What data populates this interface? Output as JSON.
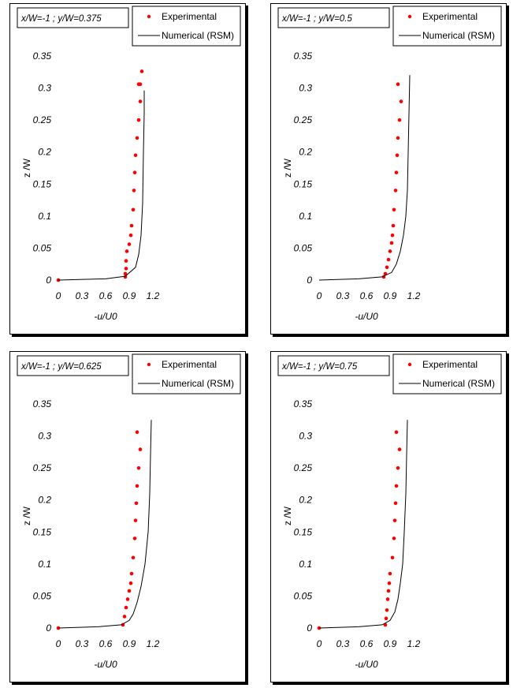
{
  "chart_data": [
    {
      "type": "scatter",
      "annotation": "x/W=-1 ; y/W=0.375",
      "xlabel": "-u/U0",
      "ylabel": "z /W",
      "xlim": [
        0,
        1.2
      ],
      "ylim": [
        0,
        0.35
      ],
      "xticks": [
        "0",
        "0.3",
        "0.6",
        "0.9",
        "1.2"
      ],
      "yticks": [
        "0",
        "0.05",
        "0.1",
        "0.15",
        "0.2",
        "0.25",
        "0.3",
        "0.35"
      ],
      "legend": [
        "Experimental",
        "Numerical (RSM)"
      ],
      "series": [
        {
          "name": "Experimental",
          "style": "markers",
          "color": "#ff0000",
          "x": [
            0.0,
            0.85,
            0.85,
            0.86,
            0.86,
            0.87,
            0.9,
            0.92,
            0.93,
            0.95,
            0.96,
            0.97,
            0.98,
            1.0,
            1.02,
            1.04,
            1.04,
            1.06,
            1.02
          ],
          "y": [
            0.0,
            0.005,
            0.01,
            0.018,
            0.03,
            0.045,
            0.056,
            0.07,
            0.085,
            0.11,
            0.14,
            0.168,
            0.195,
            0.222,
            0.25,
            0.279,
            0.306,
            0.326,
            0.306
          ]
        },
        {
          "name": "Numerical (RSM)",
          "style": "line",
          "color": "#000000",
          "x": [
            0.0,
            0.6,
            0.85,
            0.98,
            1.02,
            1.05,
            1.07,
            1.08,
            1.09,
            1.09
          ],
          "y": [
            0.0,
            0.002,
            0.006,
            0.02,
            0.04,
            0.07,
            0.12,
            0.2,
            0.26,
            0.296
          ]
        }
      ]
    },
    {
      "type": "scatter",
      "annotation": "x/W=-1 ; y/W=0.5",
      "xlabel": "-u/U0",
      "ylabel": "z /W",
      "xlim": [
        0,
        1.2
      ],
      "ylim": [
        0,
        0.35
      ],
      "xticks": [
        "0",
        "0.3",
        "0.6",
        "0.9",
        "1.2"
      ],
      "yticks": [
        "0",
        "0.05",
        "0.1",
        "0.15",
        "0.2",
        "0.25",
        "0.3",
        "0.35"
      ],
      "legend": [
        "Experimental",
        "Numerical (RSM)"
      ],
      "series": [
        {
          "name": "Experimental",
          "style": "markers",
          "color": "#ff0000",
          "x": [
            0.82,
            0.84,
            0.86,
            0.88,
            0.9,
            0.92,
            0.93,
            0.94,
            0.95,
            0.97,
            0.98,
            0.99,
            1.0,
            1.02,
            1.04,
            1.0
          ],
          "y": [
            0.005,
            0.01,
            0.02,
            0.032,
            0.045,
            0.058,
            0.07,
            0.085,
            0.11,
            0.14,
            0.168,
            0.195,
            0.222,
            0.25,
            0.279,
            0.306
          ]
        },
        {
          "name": "Numerical (RSM)",
          "style": "line",
          "color": "#000000",
          "x": [
            0.0,
            0.5,
            0.8,
            0.92,
            0.98,
            1.03,
            1.07,
            1.1,
            1.12,
            1.13,
            1.14,
            1.15
          ],
          "y": [
            0.0,
            0.002,
            0.005,
            0.012,
            0.025,
            0.045,
            0.07,
            0.1,
            0.14,
            0.2,
            0.26,
            0.32
          ]
        }
      ]
    },
    {
      "type": "scatter",
      "annotation": "x/W=-1 ; y/W=0.625",
      "xlabel": "-u/U0",
      "ylabel": "z /W",
      "xlim": [
        0,
        1.2
      ],
      "ylim": [
        0,
        0.35
      ],
      "xticks": [
        "0",
        "0.3",
        "0.6",
        "0.9",
        "1.2"
      ],
      "yticks": [
        "0",
        "0.05",
        "0.1",
        "0.15",
        "0.2",
        "0.25",
        "0.3",
        "0.35"
      ],
      "legend": [
        "Experimental",
        "Numerical (RSM)"
      ],
      "series": [
        {
          "name": "Experimental",
          "style": "markers",
          "color": "#ff0000",
          "x": [
            0.0,
            0.82,
            0.84,
            0.86,
            0.88,
            0.9,
            0.92,
            0.93,
            0.95,
            0.97,
            0.98,
            0.99,
            1.0,
            1.02,
            1.04,
            1.0
          ],
          "y": [
            0.0,
            0.005,
            0.018,
            0.032,
            0.045,
            0.058,
            0.07,
            0.085,
            0.11,
            0.14,
            0.168,
            0.195,
            0.222,
            0.25,
            0.279,
            0.306
          ]
        },
        {
          "name": "Numerical (RSM)",
          "style": "line",
          "color": "#000000",
          "x": [
            0.0,
            0.5,
            0.8,
            0.9,
            0.95,
            1.0,
            1.05,
            1.1,
            1.14,
            1.16,
            1.17,
            1.18
          ],
          "y": [
            0.0,
            0.002,
            0.005,
            0.012,
            0.022,
            0.04,
            0.065,
            0.1,
            0.15,
            0.21,
            0.27,
            0.325
          ]
        }
      ]
    },
    {
      "type": "scatter",
      "annotation": "x/W=-1 ; y/W=0.75",
      "xlabel": "-u/U0",
      "ylabel": "z /W",
      "xlim": [
        0,
        1.2
      ],
      "ylim": [
        0,
        0.35
      ],
      "xticks": [
        "0",
        "0.3",
        "0.6",
        "0.9",
        "1.2"
      ],
      "yticks": [
        "0",
        "0.05",
        "0.1",
        "0.15",
        "0.2",
        "0.25",
        "0.3",
        "0.35"
      ],
      "legend": [
        "Experimental",
        "Numerical (RSM)"
      ],
      "series": [
        {
          "name": "Experimental",
          "style": "markers",
          "color": "#ff0000",
          "x": [
            0.0,
            0.84,
            0.85,
            0.86,
            0.87,
            0.88,
            0.89,
            0.9,
            0.93,
            0.95,
            0.96,
            0.97,
            0.98,
            1.0,
            1.02,
            0.98
          ],
          "y": [
            0.0,
            0.005,
            0.015,
            0.028,
            0.045,
            0.058,
            0.07,
            0.085,
            0.11,
            0.14,
            0.168,
            0.195,
            0.222,
            0.25,
            0.279,
            0.306
          ]
        },
        {
          "name": "Numerical (RSM)",
          "style": "line",
          "color": "#000000",
          "x": [
            0.0,
            0.5,
            0.8,
            0.9,
            0.96,
            1.0,
            1.03,
            1.06,
            1.08,
            1.1,
            1.11,
            1.12
          ],
          "y": [
            0.0,
            0.002,
            0.005,
            0.012,
            0.025,
            0.045,
            0.07,
            0.1,
            0.15,
            0.21,
            0.27,
            0.325
          ]
        }
      ]
    }
  ]
}
